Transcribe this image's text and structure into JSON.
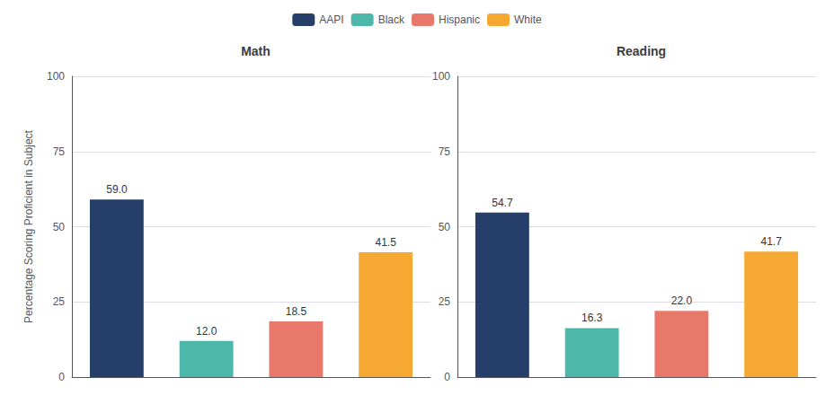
{
  "chart_data": [
    {
      "type": "bar",
      "title": "Math",
      "categories": [
        "AAPI",
        "Black",
        "Hispanic",
        "White"
      ],
      "values": [
        59.0,
        12.0,
        18.5,
        41.5
      ],
      "value_labels": [
        "59.0",
        "12.0",
        "18.5",
        "41.5"
      ],
      "colors": [
        "#253f6a",
        "#4db8aa",
        "#e8796a",
        "#f5a832"
      ],
      "ylabel": "Percentage Scoring Proficient in Subject",
      "ylim": [
        0,
        100
      ],
      "yticks": [
        0,
        25,
        50,
        75,
        100
      ],
      "grid": true,
      "data_labels": true,
      "tick_labels": "y",
      "legend": "top"
    },
    {
      "type": "bar",
      "title": "Reading",
      "categories": [
        "AAPI",
        "Black",
        "Hispanic",
        "White"
      ],
      "values": [
        54.7,
        16.3,
        22.0,
        41.7
      ],
      "value_labels": [
        "54.7",
        "16.3",
        "22.0",
        "41.7"
      ],
      "colors": [
        "#253f6a",
        "#4db8aa",
        "#e8796a",
        "#f5a832"
      ],
      "ylim": [
        0,
        100
      ],
      "yticks": [
        0,
        25,
        50,
        75,
        100
      ],
      "grid": true,
      "data_labels": true,
      "tick_labels": "y"
    }
  ]
}
